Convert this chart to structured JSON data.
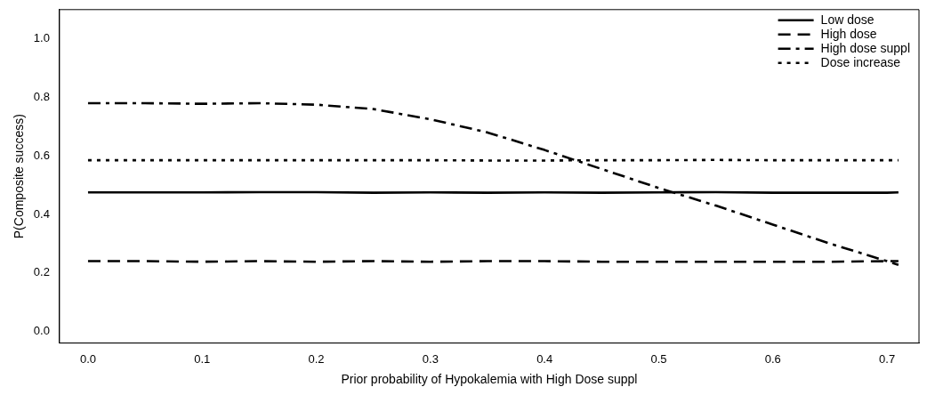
{
  "chart_data": {
    "type": "line",
    "xlabel": "Prior probability of Hypokalemia with High Dose suppl",
    "ylabel": "P(Composite success)",
    "xlim": [
      -0.025,
      0.728
    ],
    "ylim": [
      -0.04,
      1.1
    ],
    "xticks": [
      {
        "value": 0,
        "label": "0.0"
      },
      0.1,
      0.2,
      0.3,
      0.4,
      0.5,
      0.6,
      0.7
    ],
    "yticks": [
      {
        "value": 0,
        "label": "0.0"
      },
      0.2,
      0.4,
      0.6,
      0.8,
      {
        "value": 1,
        "label": "1.0"
      }
    ],
    "x": [
      0,
      0.05,
      0.1,
      0.15,
      0.2,
      0.25,
      0.3,
      0.35,
      0.4,
      0.45,
      0.5,
      0.55,
      0.6,
      0.65,
      0.7,
      0.71
    ],
    "grid": false,
    "legend": "top right",
    "marker": "none",
    "series": [
      {
        "name": "Low dose",
        "color": "#000000",
        "line_style": "solid",
        "values": [
          0.475,
          0.475,
          0.475,
          0.476,
          0.476,
          0.474,
          0.475,
          0.474,
          0.475,
          0.474,
          0.475,
          0.476,
          0.474,
          0.474,
          0.474,
          0.475
        ]
      },
      {
        "name": "High dose",
        "color": "#000000",
        "line_style": "dashed",
        "values": [
          0.24,
          0.24,
          0.238,
          0.24,
          0.238,
          0.24,
          0.238,
          0.24,
          0.24,
          0.238,
          0.238,
          0.238,
          0.238,
          0.238,
          0.24,
          0.24
        ]
      },
      {
        "name": "High dose suppl",
        "color": "#000000",
        "line_style": "dashdot",
        "values": [
          0.78,
          0.78,
          0.778,
          0.78,
          0.775,
          0.76,
          0.725,
          0.68,
          0.62,
          0.555,
          0.49,
          0.43,
          0.365,
          0.3,
          0.24,
          0.227
        ]
      },
      {
        "name": "Dose increase",
        "color": "#000000",
        "line_style": "dotted",
        "values": [
          0.585,
          0.585,
          0.585,
          0.585,
          0.585,
          0.585,
          0.585,
          0.584,
          0.584,
          0.585,
          0.585,
          0.586,
          0.585,
          0.585,
          0.585,
          0.585
        ]
      }
    ]
  }
}
